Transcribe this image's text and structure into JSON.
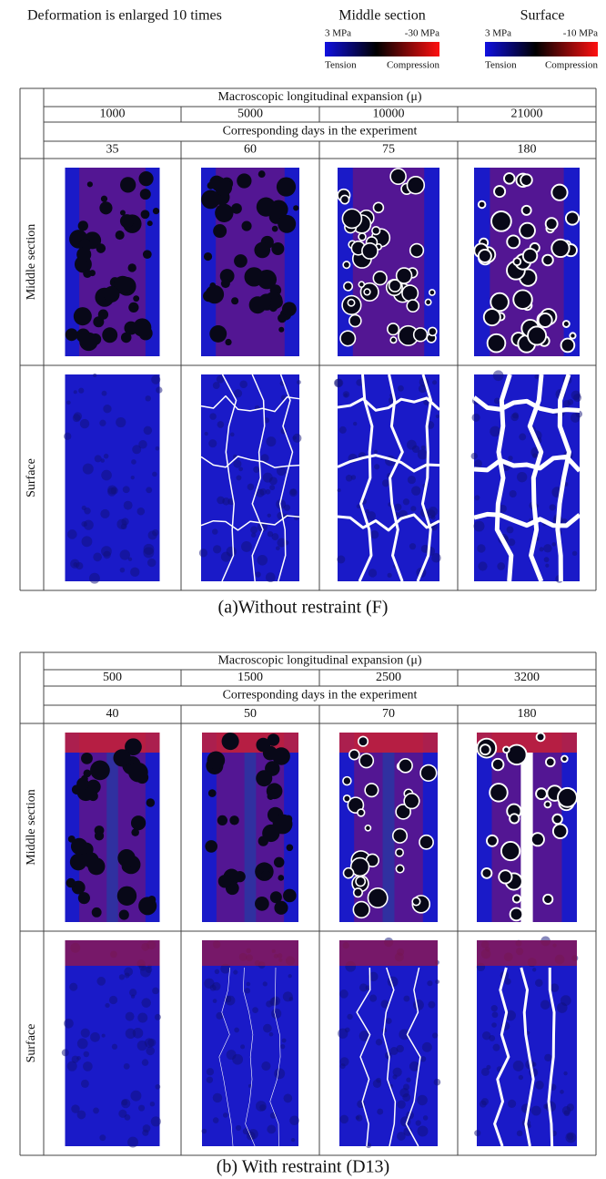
{
  "header": {
    "note": "Deformation is enlarged 10 times",
    "legends": [
      {
        "title": "Middle section",
        "min": "3 MPa",
        "max": "-30 MPa",
        "left": "Tension",
        "right": "Compression"
      },
      {
        "title": "Surface",
        "min": "3 MPa",
        "max": "-10 MPa",
        "left": "Tension",
        "right": "Compression"
      }
    ]
  },
  "panels": [
    {
      "expansion_label": "Macroscopic longitudinal expansion (μ)",
      "expansions": [
        1000,
        5000,
        10000,
        21000
      ],
      "days_label": "Corresponding days in the experiment",
      "days": [
        35,
        60,
        75,
        180
      ],
      "rows": [
        "Middle section",
        "Surface"
      ],
      "caption": "(a)Without restraint (F)"
    },
    {
      "expansion_label": "Macroscopic longitudinal expansion (μ)",
      "expansions": [
        500,
        1500,
        2500,
        3200
      ],
      "days_label": "Corresponding days in the experiment",
      "days": [
        40,
        50,
        70,
        180
      ],
      "rows": [
        "Middle section",
        "Surface"
      ],
      "caption": "(b) With restraint (D13)"
    }
  ]
}
